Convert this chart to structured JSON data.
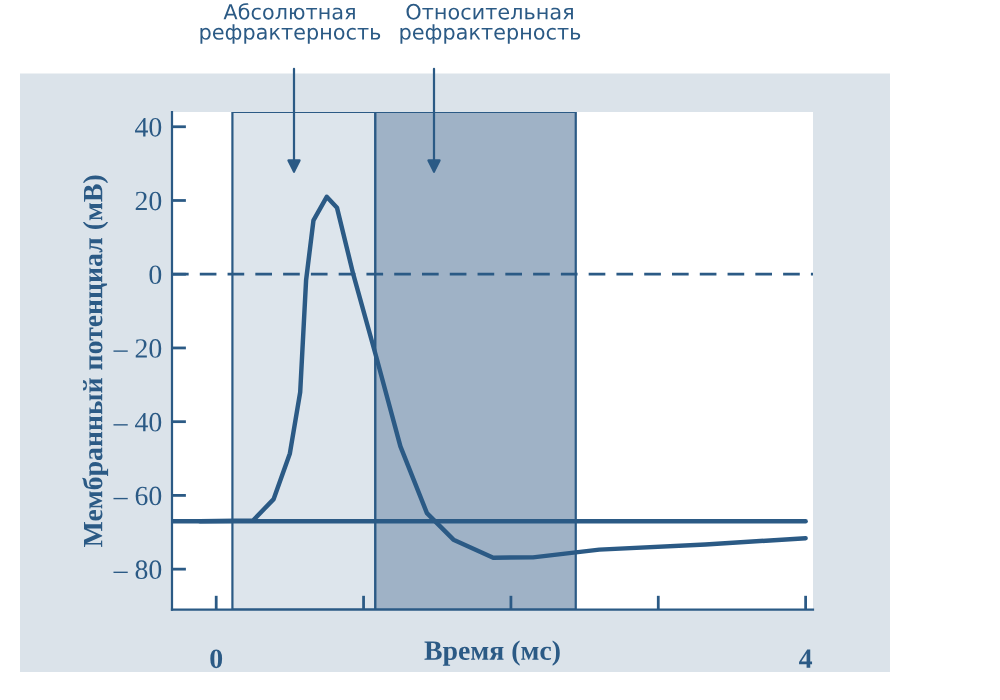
{
  "chart_data": {
    "type": "line",
    "xlabel": "Время (мс)",
    "ylabel": "Мембранный потенциал (мВ)",
    "xlim": [
      -0.3,
      4.05
    ],
    "ylim": [
      -91,
      44
    ],
    "xticks": [
      0,
      {
        "value": 1,
        "label": null
      },
      {
        "value": 2,
        "label": null
      },
      {
        "value": 3,
        "label": null
      },
      4
    ],
    "yticks": [
      40,
      20,
      0,
      {
        "value": -20,
        "label": "– 20"
      },
      {
        "value": -40,
        "label": "– 40"
      },
      {
        "value": -60,
        "label": "– 60"
      },
      {
        "value": -80,
        "label": "– 80"
      }
    ],
    "series": [
      {
        "color": "#2b5a85",
        "x": [
          -0.3,
          4.0
        ],
        "values": [
          -67,
          -67
        ]
      },
      {
        "color": "#2b5a85",
        "x": [
          -0.11,
          0.25,
          0.39,
          0.5,
          0.57,
          0.61,
          0.66,
          0.75,
          0.82,
          0.93,
          1.09,
          1.25,
          1.43,
          1.61,
          1.88,
          2.15,
          2.6,
          3.32,
          4.0
        ],
        "values": [
          -67,
          -66.8,
          -61,
          -48.6,
          -32,
          -1.6,
          14.6,
          21,
          18,
          0,
          -23,
          -46.7,
          -64.8,
          -72,
          -76.9,
          -76.8,
          -74.7,
          -73.3,
          -71.6
        ]
      }
    ],
    "bands": [
      {
        "axis": "x",
        "from": 0.11,
        "to": 1.08,
        "color": "#dde5ec"
      },
      {
        "axis": "x",
        "from": 1.08,
        "to": 2.44,
        "color": "#9fb2c6"
      }
    ],
    "ref_lines": [
      {
        "axis": "y",
        "value": 0,
        "color": "#2b5a85",
        "line_style": "dashed"
      }
    ],
    "annotations": [
      "Абсолютная\nрефрактерность",
      "Относительная\nрефрактерность"
    ],
    "grid": false,
    "legend": false,
    "line_style": "solid",
    "marker": "none"
  }
}
